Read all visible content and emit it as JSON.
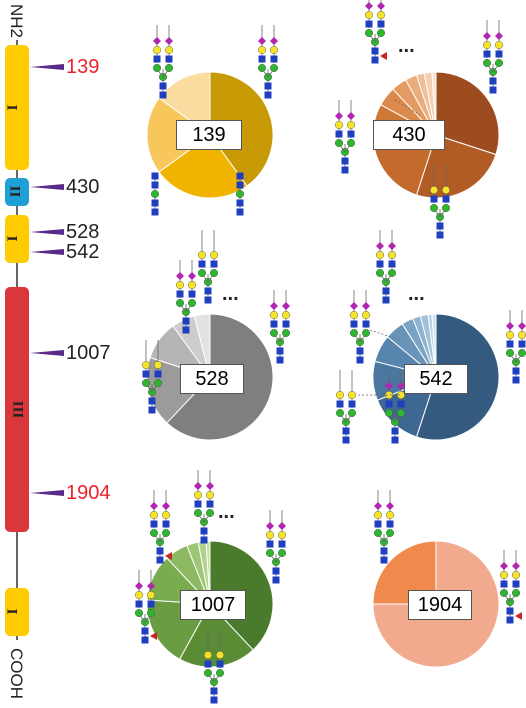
{
  "protein": {
    "n_term": "NH2",
    "c_term": "COOH",
    "domains": [
      {
        "label": "I",
        "color": "#ffcc00"
      },
      {
        "label": "II",
        "color": "#1fa0d6"
      },
      {
        "label": "I",
        "color": "#ffcc00"
      },
      {
        "label": "III",
        "color": "#d9373b"
      },
      {
        "label": "I",
        "color": "#ffcc00"
      }
    ],
    "sites": [
      {
        "label": "139",
        "color": "#e8252a"
      },
      {
        "label": "430",
        "color": "#222222"
      },
      {
        "label": "528",
        "color": "#222222"
      },
      {
        "label": "542",
        "color": "#222222"
      },
      {
        "label": "1007",
        "color": "#222222"
      },
      {
        "label": "1904",
        "color": "#e8252a"
      }
    ]
  },
  "pies": [
    {
      "site": "139",
      "values": [
        40,
        25,
        20,
        15
      ],
      "colors": [
        "#c79a06",
        "#f0b400",
        "#f7c75c",
        "#fbdca0"
      ],
      "more": false
    },
    {
      "site": "430",
      "values": [
        30,
        25,
        18,
        10,
        5,
        4,
        3,
        2,
        2,
        1
      ],
      "colors": [
        "#9c4c1e",
        "#b15c25",
        "#c36a2c",
        "#cf7836",
        "#db8a4c",
        "#e49b63",
        "#eaad7d",
        "#efbf98",
        "#f4d0b3",
        "#f8e0cc"
      ],
      "more": true
    },
    {
      "site": "528",
      "values": [
        62,
        18,
        10,
        6,
        4
      ],
      "colors": [
        "#7f7f7f",
        "#9b9b9b",
        "#b5b5b5",
        "#cdcdcd",
        "#e2e2e2"
      ],
      "more": true
    },
    {
      "site": "542",
      "values": [
        55,
        14,
        10,
        7,
        5,
        3,
        2,
        2,
        1,
        1
      ],
      "colors": [
        "#345a80",
        "#3e6892",
        "#4a76a0",
        "#5885ad",
        "#6894b9",
        "#7aa3c4",
        "#8db3cf",
        "#a2c2da",
        "#b7d2e4",
        "#cde0ee"
      ],
      "more": true
    },
    {
      "site": "1007",
      "values": [
        38,
        20,
        18,
        12,
        6,
        3,
        2,
        1
      ],
      "colors": [
        "#4a7a2c",
        "#5a8c36",
        "#6a9c42",
        "#7aab4f",
        "#8cb962",
        "#9ec676",
        "#b2d38e",
        "#c6e0a8"
      ],
      "more": true
    },
    {
      "site": "1904",
      "values": [
        75,
        25
      ],
      "colors": [
        "#f2aa8e",
        "#f08a4c"
      ],
      "more": false
    }
  ],
  "ellipsis": "..."
}
